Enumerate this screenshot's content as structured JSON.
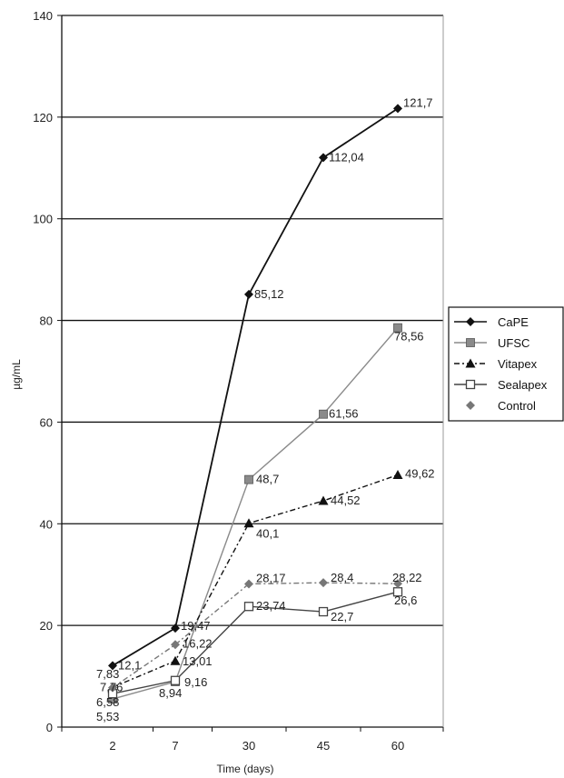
{
  "chart_data": {
    "type": "line",
    "title": "",
    "xlabel": "Time (days)",
    "ylabel": "µg/mL",
    "categories": [
      "2",
      "7",
      "30",
      "45",
      "60"
    ],
    "ylim": [
      0,
      140
    ],
    "yticks": [
      "0",
      "20",
      "40",
      "60",
      "80",
      "100",
      "120",
      "140"
    ],
    "grid": "horizontal",
    "legend_position": "right",
    "series": [
      {
        "name": "CaPE",
        "values": [
          12.1,
          19.47,
          85.12,
          112.04,
          121.7
        ],
        "labels": [
          "12,1",
          "19,47",
          "85,12",
          "112,04",
          "121,7"
        ],
        "color": "#111111",
        "marker": "diamond",
        "dash": "solid"
      },
      {
        "name": "UFSC",
        "values": [
          5.53,
          8.94,
          48.7,
          61.56,
          78.56
        ],
        "labels": [
          "5,53",
          "8,94",
          "48,7",
          "61,56",
          "78,56"
        ],
        "color": "#8a8a8a",
        "marker": "square",
        "dash": "solid"
      },
      {
        "name": "Vitapex",
        "values": [
          7.83,
          13.01,
          40.1,
          44.52,
          49.62
        ],
        "labels": [
          "7,83",
          "13,01",
          "40,1",
          "44,52",
          "49,62"
        ],
        "color": "#111111",
        "marker": "triangle",
        "dash": "dashdot"
      },
      {
        "name": "Sealapex",
        "values": [
          6.58,
          9.16,
          23.74,
          22.7,
          26.6
        ],
        "labels": [
          "6,58",
          "9,16",
          "23,74",
          "22,7",
          "26,6"
        ],
        "color": "#444444",
        "marker": "square-open",
        "dash": "solid"
      },
      {
        "name": "Control",
        "values": [
          7.76,
          16.22,
          28.17,
          28.4,
          28.22
        ],
        "labels": [
          "7,76",
          "16,22",
          "28,17",
          "28,4",
          "28,22"
        ],
        "color": "#777777",
        "marker": "diamond",
        "dash": "dashdot"
      }
    ]
  }
}
